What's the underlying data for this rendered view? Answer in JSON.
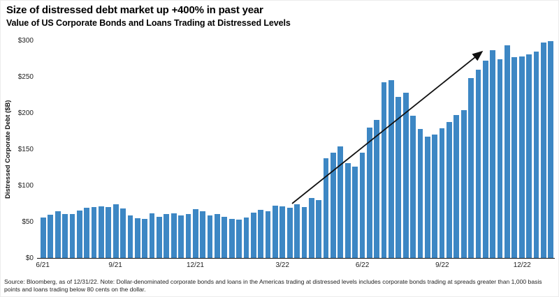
{
  "header": {
    "title": "Size of distressed debt market up +400% in past year",
    "subtitle": "Value of US Corporate Bonds and Loans Trading at Distressed Levels"
  },
  "chart_data": {
    "type": "bar",
    "title": "Size of distressed debt market up +400% in past year",
    "subtitle": "Value of US Corporate Bonds and Loans Trading at Distressed Levels",
    "ylabel": "Distressed Corporate Debt ($B)",
    "xlabel": "",
    "ylim": [
      0,
      300
    ],
    "grid": false,
    "bar_color": "#3d87c4",
    "axis_color": "#111111",
    "y_ticks": [
      {
        "value": 0,
        "label": "$0"
      },
      {
        "value": 50,
        "label": "$50"
      },
      {
        "value": 100,
        "label": "$100"
      },
      {
        "value": 150,
        "label": "$150"
      },
      {
        "value": 200,
        "label": "$200"
      },
      {
        "value": 250,
        "label": "$250"
      },
      {
        "value": 300,
        "label": "$300"
      }
    ],
    "x_tick_labels": [
      {
        "index": 0,
        "label": "6/21"
      },
      {
        "index": 10,
        "label": "9/21"
      },
      {
        "index": 21,
        "label": "12/21"
      },
      {
        "index": 33,
        "label": "3/22"
      },
      {
        "index": 44,
        "label": "6/22"
      },
      {
        "index": 55,
        "label": "9/22"
      },
      {
        "index": 66,
        "label": "12/22"
      }
    ],
    "values": [
      56,
      60,
      64,
      61,
      61,
      65,
      69,
      70,
      71,
      70,
      74,
      68,
      59,
      55,
      54,
      62,
      57,
      61,
      62,
      59,
      61,
      67,
      64,
      59,
      61,
      57,
      54,
      53,
      56,
      63,
      66,
      64,
      72,
      71,
      69,
      74,
      70,
      83,
      80,
      138,
      145,
      154,
      131,
      126,
      145,
      180,
      190,
      242,
      245,
      222,
      228,
      196,
      178,
      167,
      170,
      179,
      188,
      197,
      204,
      248,
      260,
      272,
      287,
      274,
      293,
      277,
      278,
      281,
      285,
      297,
      299
    ],
    "annotation_arrow": {
      "x1_frac": 0.4905,
      "y1_value": 75,
      "x2_frac": 0.858,
      "y2_value": 284,
      "color": "#111111"
    }
  },
  "footer": {
    "source_note": "Source: Bloomberg, as of 12/31/22. Note: Dollar-denominated corporate bonds and loans in the Americas trading at distressed levels includes corporate bonds trading at spreads greater than 1,000 basis points and loans trading below 80 cents on the dollar."
  }
}
